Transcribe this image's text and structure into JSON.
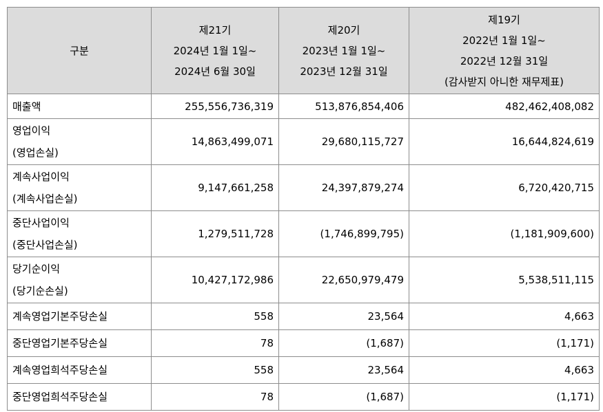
{
  "table": {
    "header": {
      "category": "구분",
      "periods": [
        {
          "lines": [
            "제21기",
            "2024년 1월 1일~",
            "2024년 6월 30일"
          ]
        },
        {
          "lines": [
            "제20기",
            "2023년 1월 1일~",
            "2023년 12월 31일"
          ]
        },
        {
          "lines": [
            "제19기",
            "2022년 1월 1일~",
            "2022년 12월 31일",
            "(감사받지 아니한 재무제표)"
          ]
        }
      ]
    },
    "rows": [
      {
        "label_lines": [
          "매출액"
        ],
        "values": [
          "255,556,736,319",
          "513,876,854,406",
          "482,462,408,082"
        ]
      },
      {
        "label_lines": [
          "영업이익",
          "(영업손실)"
        ],
        "values": [
          "14,863,499,071",
          "29,680,115,727",
          "16,644,824,619"
        ]
      },
      {
        "label_lines": [
          "계속사업이익",
          "(계속사업손실)"
        ],
        "values": [
          "9,147,661,258",
          "24,397,879,274",
          "6,720,420,715"
        ]
      },
      {
        "label_lines": [
          "중단사업이익",
          "(중단사업손실)"
        ],
        "values": [
          "1,279,511,728",
          "(1,746,899,795)",
          "(1,181,909,600)"
        ]
      },
      {
        "label_lines": [
          "당기순이익",
          "(당기순손실)"
        ],
        "values": [
          "10,427,172,986",
          "22,650,979,479",
          "5,538,511,115"
        ]
      },
      {
        "label_lines": [
          "계속영업기본주당손실"
        ],
        "values": [
          "558",
          "23,564",
          "4,663"
        ]
      },
      {
        "label_lines": [
          "중단영업기본주당손실"
        ],
        "values": [
          "78",
          "(1,687)",
          "(1,171)"
        ]
      },
      {
        "label_lines": [
          "계속영업희석주당손실"
        ],
        "values": [
          "558",
          "23,564",
          "4,663"
        ]
      },
      {
        "label_lines": [
          "중단영업희석주당손실"
        ],
        "values": [
          "78",
          "(1,687)",
          "(1,171)"
        ]
      }
    ]
  }
}
